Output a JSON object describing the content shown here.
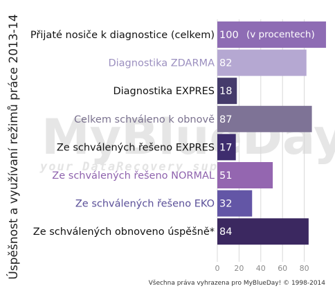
{
  "chart_data": {
    "type": "bar",
    "orientation": "horizontal",
    "title": "Úspěšnost a využívaní režimů práce 2013-14",
    "categories": [
      "Přijaté nosiče k diagnostice (celkem)",
      "Diagnostika ZDARMA",
      "Diagnostika EXPRES",
      "Celkem schváleno k obnově",
      "Ze schválených řešeno EXPRES",
      "Ze schválených řešeno NORMAL",
      "Ze schválených řešeno EKO",
      "Ze schválených obnoveno úspěšně*"
    ],
    "values": [
      100,
      82,
      18,
      87,
      17,
      51,
      32,
      84
    ],
    "value_labels": [
      "100",
      "82",
      "18",
      "87",
      "17",
      "51",
      "32",
      "84"
    ],
    "bar_colors": [
      "#8e6cb4",
      "#b5a8d2",
      "#453b6b",
      "#7e7396",
      "#3e2d6e",
      "#9466b0",
      "#6356a6",
      "#3b2860"
    ],
    "label_colors": [
      "#111111",
      "#9b8fbf",
      "#111111",
      "#7b728f",
      "#111111",
      "#8e62ad",
      "#5a4f98",
      "#111111"
    ],
    "annotation": "(v procentech)",
    "xticks": [
      0,
      20,
      40,
      60,
      80
    ],
    "xlim": [
      0,
      100
    ],
    "grid": true
  },
  "watermark": {
    "brand": "MyBlueDay!",
    "tagline": "your DataRecovery support"
  },
  "copyright": "Všechna práva vyhrazena pro MyBlueDay! © 1998-2014"
}
